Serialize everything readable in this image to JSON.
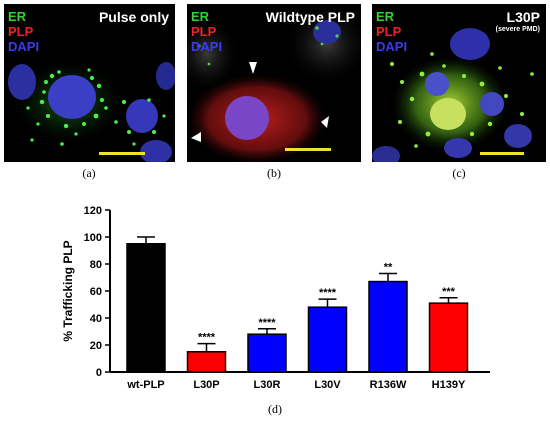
{
  "panels": [
    {
      "channels": {
        "er": "ER",
        "plp": "PLP",
        "dapi": "DAPI"
      },
      "title": "Pulse only",
      "subtitle": "",
      "caption": "(a)"
    },
    {
      "channels": {
        "er": "ER",
        "plp": "PLP",
        "dapi": "DAPI"
      },
      "title": "Wildtype PLP",
      "subtitle": "",
      "caption": "(b)"
    },
    {
      "channels": {
        "er": "ER",
        "plp": "PLP",
        "dapi": "DAPI"
      },
      "title": "L30P",
      "subtitle": "(severe PMD)",
      "caption": "(c)"
    }
  ],
  "colors": {
    "er": "#35d035",
    "plp": "#ee2222",
    "dapi": "#3a3aee",
    "scalebar": "#f0e030"
  },
  "chart_caption": "(d)",
  "chart_data": {
    "type": "bar",
    "title": "",
    "xlabel": "",
    "ylabel": "% Trafficking PLP",
    "ylim": [
      0,
      120
    ],
    "yticks": [
      "0",
      "20",
      "40",
      "60",
      "80",
      "100",
      "120"
    ],
    "categories": [
      "wt-PLP",
      "L30P",
      "L30R",
      "L30V",
      "R136W",
      "H139Y"
    ],
    "values": [
      95,
      15,
      28,
      48,
      67,
      51
    ],
    "errors": [
      5,
      6,
      4,
      6,
      6,
      4
    ],
    "significance": [
      "",
      "****",
      "****",
      "****",
      "**",
      "***"
    ],
    "bar_colors": [
      "#000000",
      "#ff0000",
      "#0000ff",
      "#0000ff",
      "#0000ff",
      "#ff0000"
    ]
  }
}
